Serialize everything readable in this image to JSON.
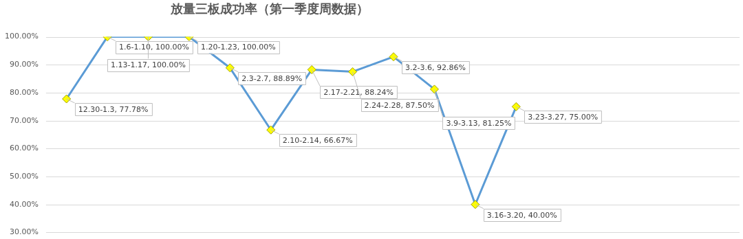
{
  "chart_data": {
    "type": "line",
    "title": "放量三板成功率（第一季度周数据）",
    "categories": [
      null,
      null,
      null,
      null,
      null,
      null,
      null,
      null,
      null,
      null,
      null,
      null
    ],
    "series": [
      {
        "color": "#5b9bd5",
        "values": [
          77.78,
          100,
          100,
          100,
          88.89,
          66.67,
          88.24,
          87.5,
          92.86,
          81.25,
          40,
          75
        ],
        "value_labels": [
          "12.30-1.3, 77.78%",
          "1.6-1.10, 100.00%",
          "1.13-1.17, 100.00%",
          "1.20-1.23, 100.00%",
          "2.3-2.7, 88.89%",
          "2.10-2.14, 66.67%",
          "2.17-2.21, 88.24%",
          "2.24-2.28, 87.50%",
          "3.2-3.6, 92.86%",
          "3.9-3.13, 81.25%",
          "3.16-3.20, 40.00%",
          "3.23-3.27, 75.00%"
        ]
      }
    ],
    "marker": "diamond",
    "ylim": [
      30,
      100
    ],
    "yticks": [
      {
        "value": 30,
        "label": "30.00%"
      },
      {
        "value": 40,
        "label": "40.00%"
      },
      {
        "value": 50,
        "label": "50.00%"
      },
      {
        "value": 60,
        "label": "60.00%"
      },
      {
        "value": 70,
        "label": "70.00%"
      },
      {
        "value": 80,
        "label": "80.00%"
      },
      {
        "value": 90,
        "label": "90.00%"
      },
      {
        "value": 100,
        "label": "100.00%"
      }
    ],
    "grid": "y",
    "tick_labels": "y",
    "legend": false
  }
}
